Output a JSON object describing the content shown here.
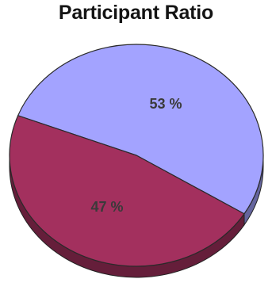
{
  "chart_data": {
    "type": "pie",
    "title": "Participant Ratio",
    "slices": [
      {
        "label": "53 %",
        "value": 53,
        "color": "#a3a3ff"
      },
      {
        "label": "47 %",
        "value": 47,
        "color": "#a3305e"
      }
    ],
    "style": "3d"
  }
}
